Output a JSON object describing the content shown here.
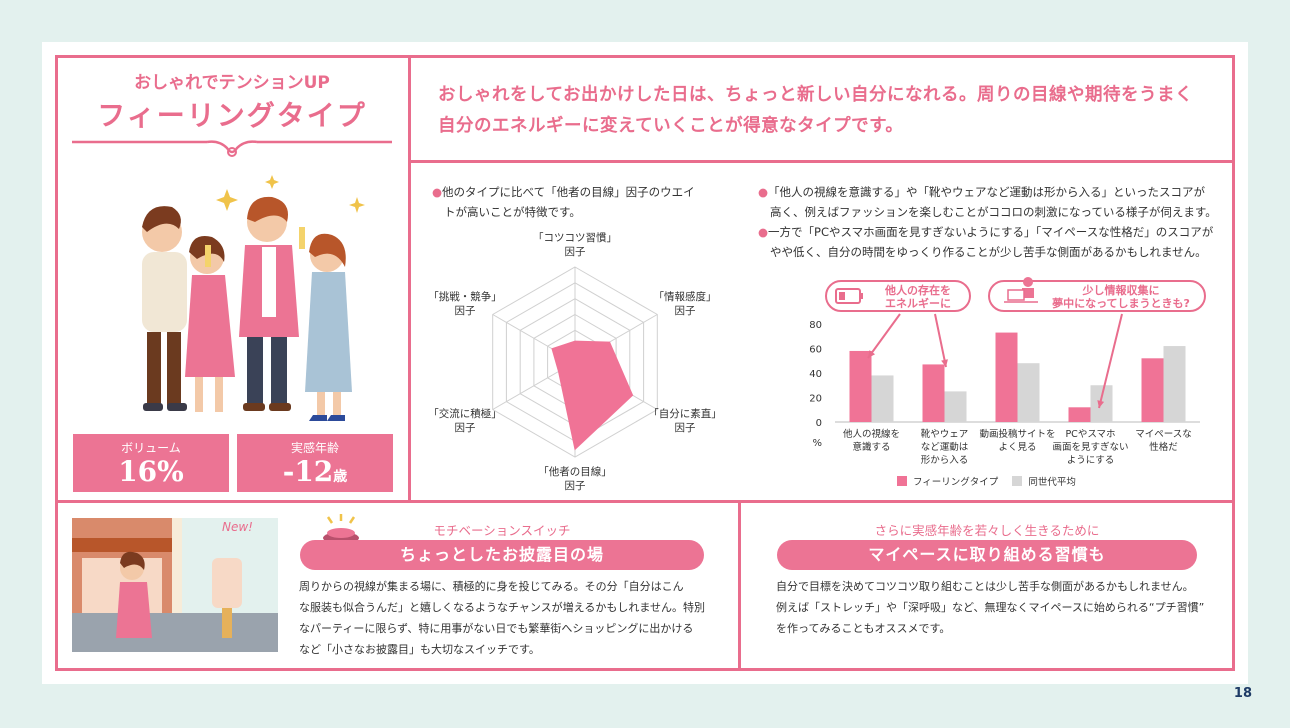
{
  "left_panel": {
    "subtitle": "おしゃれでテンションUP",
    "title": "フィーリングタイプ",
    "stats": [
      {
        "label": "ボリューム",
        "value": "16%",
        "unit": ""
      },
      {
        "label": "実感年齢",
        "value": "-12",
        "unit": "歳"
      }
    ]
  },
  "description": {
    "line1": "おしゃれをしてお出かけした日は、ちょっと新しい自分になれる。周りの目線や期待をうまく",
    "line2": "自分のエネルギーに変えていくことが得意なタイプです。"
  },
  "radar": {
    "note_line1": "他のタイプに比べて「他者の目線」因子のウエイ",
    "note_line2": "トが高いことが特徴です。",
    "axes": [
      {
        "line1": "「コツコツ習慣」",
        "line2": "因子",
        "value": 0.22
      },
      {
        "line1": "「情報感度」",
        "line2": "因子",
        "value": 0.42
      },
      {
        "line1": "「自分に素直」",
        "line2": "因子",
        "value": 0.7
      },
      {
        "line1": "「他者の目線」",
        "line2": "因子",
        "value": 0.92
      },
      {
        "line1": "「交流に積極」",
        "line2": "因子",
        "value": 0.2
      },
      {
        "line1": "「挑戦・競争」",
        "line2": "因子",
        "value": 0.28
      }
    ]
  },
  "notes": {
    "n1_line1": "「他人の視線を意識する」や「靴やウェアなど運動は形から入る」といったスコアが",
    "n1_line2": "高く、例えばファッションを楽しむことがココロの刺激になっている様子が伺えます。",
    "n2_line1": "一方で「PCやスマホ画面を見すぎないようにする」「マイペースな性格だ」のスコアが",
    "n2_line2": "やや低く、自分の時間をゆっくり作ることが少し苦手な側面があるかもしれません。"
  },
  "callouts": {
    "c1_line1": "他人の存在を",
    "c1_line2": "エネルギーに",
    "c2_line1": "少し情報収集に",
    "c2_line2": "夢中になってしまうときも?"
  },
  "chart_data": {
    "type": "bar",
    "categories": [
      "他人の視線を意識する",
      "靴やウェアなど運動は形から入る",
      "動画投稿サイトをよく見る",
      "PCやスマホ画面を見すぎないようにする",
      "マイペースな性格だ"
    ],
    "category_lines": [
      [
        "他人の視線を",
        "意識する"
      ],
      [
        "靴やウェア",
        "など運動は",
        "形から入る"
      ],
      [
        "動画投稿サイトを",
        "よく見る"
      ],
      [
        "PCやスマホ",
        "画面を見すぎない",
        "ようにする"
      ],
      [
        "マイペースな",
        "性格だ"
      ]
    ],
    "series": [
      {
        "name": "フィーリングタイプ",
        "values": [
          58,
          47,
          73,
          12,
          52
        ],
        "color": "#f07396"
      },
      {
        "name": "同世代平均",
        "values": [
          38,
          25,
          48,
          30,
          62
        ],
        "color": "#d6d6d6"
      }
    ],
    "yticks": [
      "80",
      "60",
      "40",
      "20",
      "0"
    ],
    "ylim": [
      0,
      80
    ],
    "yunit": "%"
  },
  "motivation": {
    "header": "モチベーションスイッチ",
    "pill": "ちょっとしたお披露目の場",
    "line1": "周りからの視線が集まる場に、積極的に身を投じてみる。その分「自分はこん",
    "line2": "な服装も似合うんだ」と嬉しくなるようなチャンスが増えるかもしれません。特別",
    "line3": "なパーティーに限らず、特に用事がない日でも繁華街へショッピングに出かける",
    "line4": "など「小さなお披露目」も大切なスイッチです。",
    "store_sign": "New!"
  },
  "younger": {
    "header": "さらに実感年齢を若々しく生きるために",
    "pill": "マイペースに取り組める習慣も",
    "line1": "自分で目標を決めてコツコツ取り組むことは少し苦手な側面があるかもしれません。",
    "line2": "例えば「ストレッチ」や「深呼吸」など、無理なくマイペースに始められる“プチ習慣”",
    "line3": "を作ってみることもオススメです。"
  },
  "page_number": "18",
  "colors": {
    "accent": "#e96d8d",
    "gray": "#d6d6d6",
    "background": "#e3f1ee"
  }
}
